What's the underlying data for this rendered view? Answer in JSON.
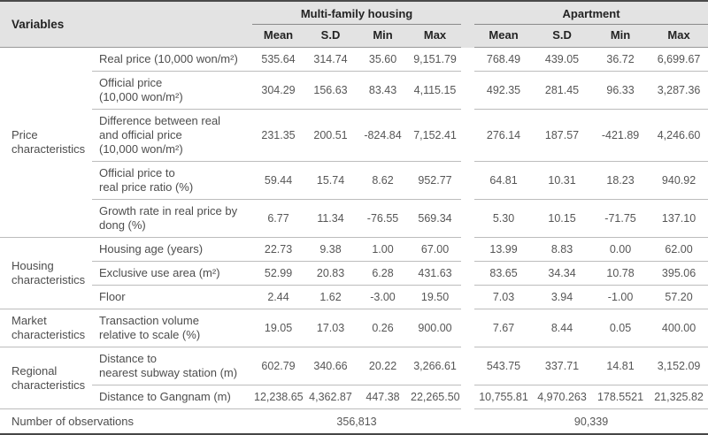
{
  "colors": {
    "header_bg": "#e3e3e3",
    "rule_dark": "#464646",
    "rule_light": "#bcbcbc"
  },
  "table": {
    "header": {
      "variables_label": "Variables",
      "group1": "Multi-family housing",
      "group2": "Apartment",
      "stat_cols": [
        "Mean",
        "S.D",
        "Min",
        "Max"
      ]
    },
    "groups": [
      {
        "label": "Price characteristics",
        "rows": [
          {
            "variable": "Real price (10,000 won/m²)",
            "multi": [
              "535.64",
              "314.74",
              "35.60",
              "9,151.79"
            ],
            "apartment": [
              "768.49",
              "439.05",
              "36.72",
              "6,699.67"
            ]
          },
          {
            "variable": "Official price\n(10,000 won/m²)",
            "multi": [
              "304.29",
              "156.63",
              "83.43",
              "4,115.15"
            ],
            "apartment": [
              "492.35",
              "281.45",
              "96.33",
              "3,287.36"
            ]
          },
          {
            "variable": "Difference between real\nand official price\n(10,000 won/m²)",
            "multi": [
              "231.35",
              "200.51",
              "-824.84",
              "7,152.41"
            ],
            "apartment": [
              "276.14",
              "187.57",
              "-421.89",
              "4,246.60"
            ]
          },
          {
            "variable": "Official price to\nreal price ratio (%)",
            "multi": [
              "59.44",
              "15.74",
              "8.62",
              "952.77"
            ],
            "apartment": [
              "64.81",
              "10.31",
              "18.23",
              "940.92"
            ]
          },
          {
            "variable": "Growth rate in real price by\ndong (%)",
            "multi": [
              "6.77",
              "11.34",
              "-76.55",
              "569.34"
            ],
            "apartment": [
              "5.30",
              "10.15",
              "-71.75",
              "137.10"
            ]
          }
        ]
      },
      {
        "label": "Housing characteristics",
        "rows": [
          {
            "variable": "Housing age (years)",
            "multi": [
              "22.73",
              "9.38",
              "1.00",
              "67.00"
            ],
            "apartment": [
              "13.99",
              "8.83",
              "0.00",
              "62.00"
            ]
          },
          {
            "variable": "Exclusive use area (m²)",
            "multi": [
              "52.99",
              "20.83",
              "6.28",
              "431.63"
            ],
            "apartment": [
              "83.65",
              "34.34",
              "10.78",
              "395.06"
            ]
          },
          {
            "variable": "Floor",
            "multi": [
              "2.44",
              "1.62",
              "-3.00",
              "19.50"
            ],
            "apartment": [
              "7.03",
              "3.94",
              "-1.00",
              "57.20"
            ]
          }
        ]
      },
      {
        "label": "Market characteristics",
        "rows": [
          {
            "variable": "Transaction volume\nrelative to scale (%)",
            "multi": [
              "19.05",
              "17.03",
              "0.26",
              "900.00"
            ],
            "apartment": [
              "7.67",
              "8.44",
              "0.05",
              "400.00"
            ]
          }
        ]
      },
      {
        "label": "Regional characteristics",
        "rows": [
          {
            "variable": "Distance to\nnearest subway station (m)",
            "multi": [
              "602.79",
              "340.66",
              "20.22",
              "3,266.61"
            ],
            "apartment": [
              "543.75",
              "337.71",
              "14.81",
              "3,152.09"
            ]
          },
          {
            "variable": "Distance to Gangnam (m)",
            "multi": [
              "12,238.65",
              "4,362.87",
              "447.38",
              "22,265.50"
            ],
            "apartment": [
              "10,755.81",
              "4,970.263",
              "178.5521",
              "21,325.82"
            ]
          }
        ]
      }
    ],
    "footer": {
      "label": "Number of observations",
      "multi_total": "356,813",
      "apartment_total": "90,339"
    }
  }
}
